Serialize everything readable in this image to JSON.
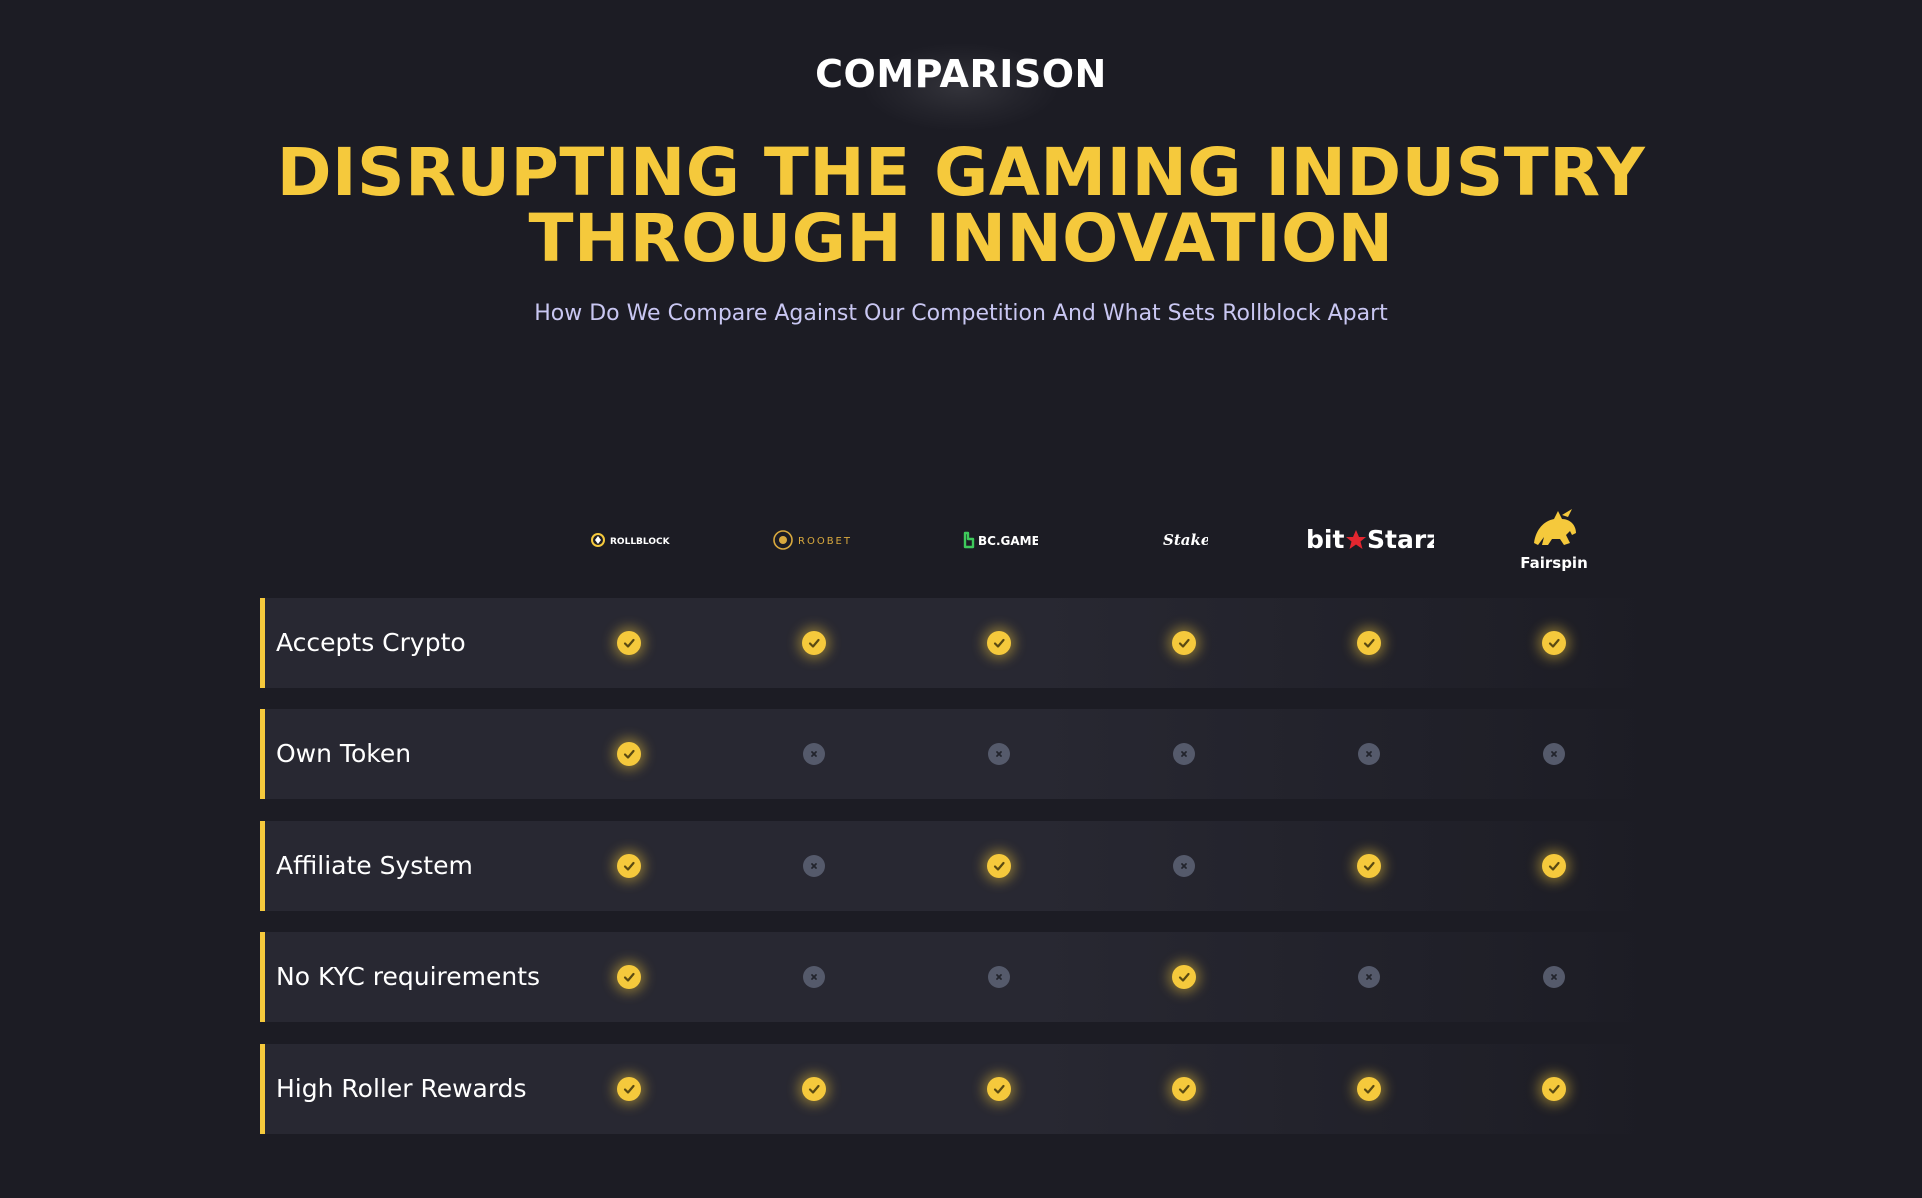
{
  "section": {
    "eyebrow": "COMPARISON",
    "headline_line1": "DISRUPTING THE GAMING INDUSTRY",
    "headline_line2": "THROUGH INNOVATION",
    "subtitle": "How Do We Compare Against Our Competition And What Sets Rollblock Apart"
  },
  "colors": {
    "background": "#1c1c24",
    "accent": "#f5c93c",
    "row_background": "#282832",
    "no_mark": "#555a6b",
    "subtitle": "#c9c7f2"
  },
  "competitors": [
    {
      "name": "ROLLBLOCK",
      "icon": "rollblock-logo-icon"
    },
    {
      "name": "ROOBET",
      "icon": "roobet-logo-icon"
    },
    {
      "name": "BC.GAME",
      "icon": "bcgame-logo-icon"
    },
    {
      "name": "Stake",
      "icon": "stake-logo-icon"
    },
    {
      "name": "bitStarz",
      "icon": "bitstarz-logo-icon"
    },
    {
      "name": "Fairspin",
      "icon": "fairspin-logo-icon"
    }
  ],
  "features": [
    {
      "label": "Accepts Crypto",
      "values": [
        true,
        true,
        true,
        true,
        true,
        true
      ]
    },
    {
      "label": "Own Token",
      "values": [
        true,
        false,
        false,
        false,
        false,
        false
      ]
    },
    {
      "label": "Affiliate System",
      "values": [
        true,
        false,
        true,
        false,
        true,
        true
      ]
    },
    {
      "label": "No KYC requirements",
      "values": [
        true,
        false,
        false,
        true,
        false,
        false
      ]
    },
    {
      "label": "High Roller Rewards",
      "values": [
        true,
        true,
        true,
        true,
        true,
        true
      ]
    }
  ],
  "icons": {
    "yes": "check-circle-icon",
    "no": "x-circle-icon"
  }
}
